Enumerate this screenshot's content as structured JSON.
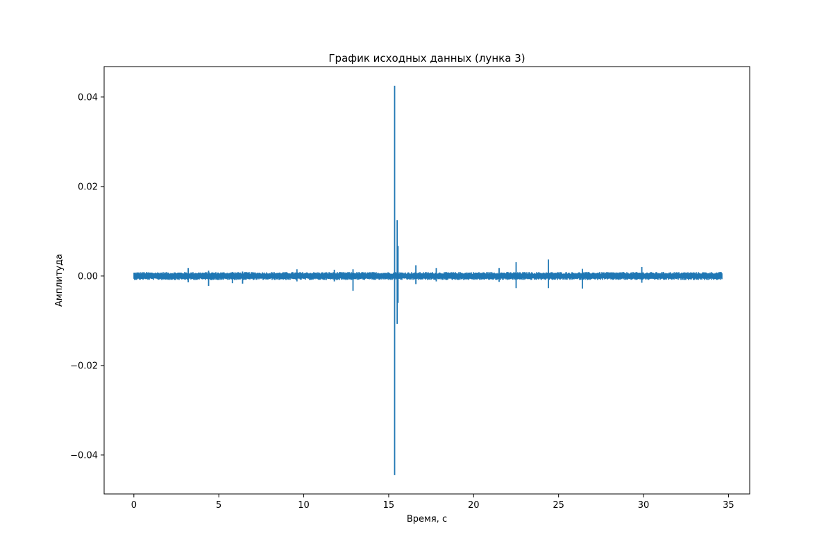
{
  "chart_data": {
    "type": "line",
    "title": "График исходных данных (лунка 3)",
    "xlabel": "Время, с",
    "ylabel": "Амплитуда",
    "xlim": [
      -1.75,
      36.25
    ],
    "ylim": [
      -0.0487,
      0.0468
    ],
    "xticks": [
      0,
      5,
      10,
      15,
      20,
      25,
      30,
      35
    ],
    "xtick_labels": [
      "0",
      "5",
      "10",
      "15",
      "20",
      "25",
      "30",
      "35"
    ],
    "yticks": [
      -0.04,
      -0.02,
      0.0,
      0.02,
      0.04
    ],
    "ytick_labels": [
      "−0.04",
      "−0.02",
      "0.00",
      "0.02",
      "0.04"
    ],
    "grid": false,
    "legend": "none",
    "series": [
      {
        "color": "#1f77b4",
        "x_range": [
          0,
          34.6
        ],
        "noise_band": [
          -0.0009,
          0.0009
        ],
        "spikes": [
          {
            "x": 3.2,
            "max": 0.0018,
            "min": -0.0014
          },
          {
            "x": 4.4,
            "max": 0.0012,
            "min": -0.0022
          },
          {
            "x": 5.8,
            "max": 0.0009,
            "min": -0.0016
          },
          {
            "x": 6.4,
            "max": 0.001,
            "min": -0.0017
          },
          {
            "x": 9.6,
            "max": 0.0015,
            "min": -0.0012
          },
          {
            "x": 11.8,
            "max": 0.0014,
            "min": -0.0012
          },
          {
            "x": 12.9,
            "max": 0.0015,
            "min": -0.0033
          },
          {
            "x": 15.35,
            "max": 0.0425,
            "min": -0.0445
          },
          {
            "x": 15.5,
            "max": 0.0125,
            "min": -0.0107
          },
          {
            "x": 15.55,
            "max": 0.0067,
            "min": -0.006
          },
          {
            "x": 16.6,
            "max": 0.0024,
            "min": -0.0018
          },
          {
            "x": 17.8,
            "max": 0.0018,
            "min": -0.0012
          },
          {
            "x": 21.5,
            "max": 0.0018,
            "min": -0.0013
          },
          {
            "x": 22.5,
            "max": 0.0031,
            "min": -0.0027
          },
          {
            "x": 24.4,
            "max": 0.0037,
            "min": -0.0027
          },
          {
            "x": 26.4,
            "max": 0.0016,
            "min": -0.0028
          },
          {
            "x": 29.9,
            "max": 0.002,
            "min": -0.0015
          }
        ]
      }
    ]
  }
}
